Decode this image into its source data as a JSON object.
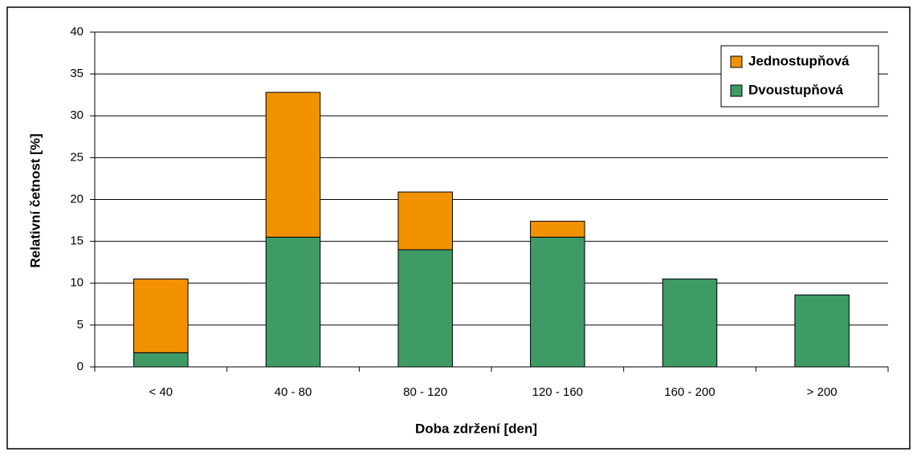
{
  "chart_data": {
    "type": "stacked_bar",
    "x_label": "Doba zdržení [den]",
    "y_label": "Relativní četnost [%]",
    "categories": [
      "< 40",
      "40 - 80",
      "80 - 120",
      "120 - 160",
      "160 - 200",
      "> 200"
    ],
    "series": [
      {
        "name": "Jednostupňová",
        "color": "#f39200",
        "values": [
          8.8,
          17.3,
          6.9,
          1.9,
          0,
          0
        ]
      },
      {
        "name": "Dvoustupňová",
        "color": "#3f9b66",
        "values": [
          1.7,
          15.5,
          14,
          15.5,
          10.5,
          8.6
        ]
      }
    ],
    "ylim": [
      0,
      40
    ],
    "yticks": [
      0,
      5,
      10,
      15,
      20,
      25,
      30,
      35,
      40
    ],
    "grid": true,
    "legend": "upper right"
  }
}
